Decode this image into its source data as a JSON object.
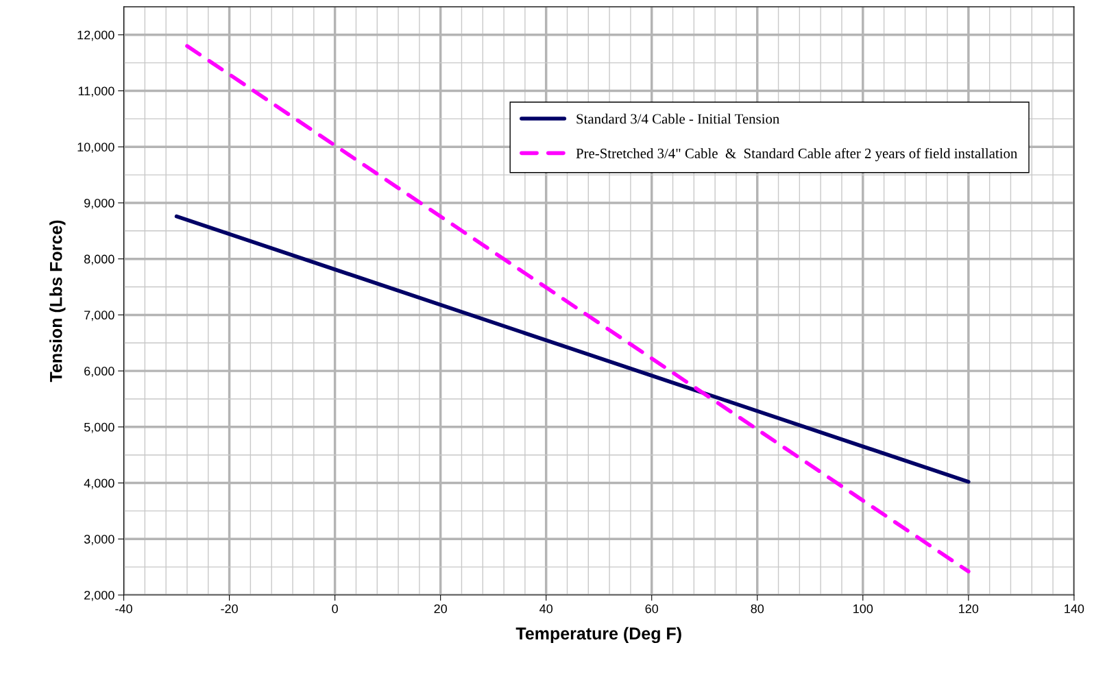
{
  "chart_data": {
    "type": "line",
    "xlabel": "Temperature (Deg F)",
    "ylabel": "Tension (Lbs Force)",
    "series": [
      {
        "name": "Standard 3/4 Cable - Initial Tension",
        "color": "#000066",
        "line_style": "solid",
        "x": [
          -30,
          120
        ],
        "values": [
          8760,
          4020
        ]
      },
      {
        "name": "Pre-Stretched 3/4\" Cable  &  Standard Cable after 2 years of field installation",
        "color": "#ff00ff",
        "line_style": "dashed",
        "x": [
          -28,
          120
        ],
        "values": [
          11800,
          2420
        ]
      }
    ],
    "xlim": [
      -40,
      140
    ],
    "xticks": [
      -40,
      -20,
      0,
      20,
      40,
      60,
      80,
      100,
      120,
      140
    ],
    "ylim": [
      2000,
      12500
    ],
    "yticks": [
      {
        "value": 2000,
        "label": "2,000"
      },
      {
        "value": 3000,
        "label": "3,000"
      },
      {
        "value": 4000,
        "label": "4,000"
      },
      {
        "value": 5000,
        "label": "5,000"
      },
      {
        "value": 6000,
        "label": "6,000"
      },
      {
        "value": 7000,
        "label": "7,000"
      },
      {
        "value": 8000,
        "label": "8,000"
      },
      {
        "value": 9000,
        "label": "9,000"
      },
      {
        "value": 10000,
        "label": "10,000"
      },
      {
        "value": 11000,
        "label": "11,000"
      },
      {
        "value": 12000,
        "label": "12,000"
      }
    ],
    "grid": true,
    "legend": "top right",
    "marker": "none"
  }
}
